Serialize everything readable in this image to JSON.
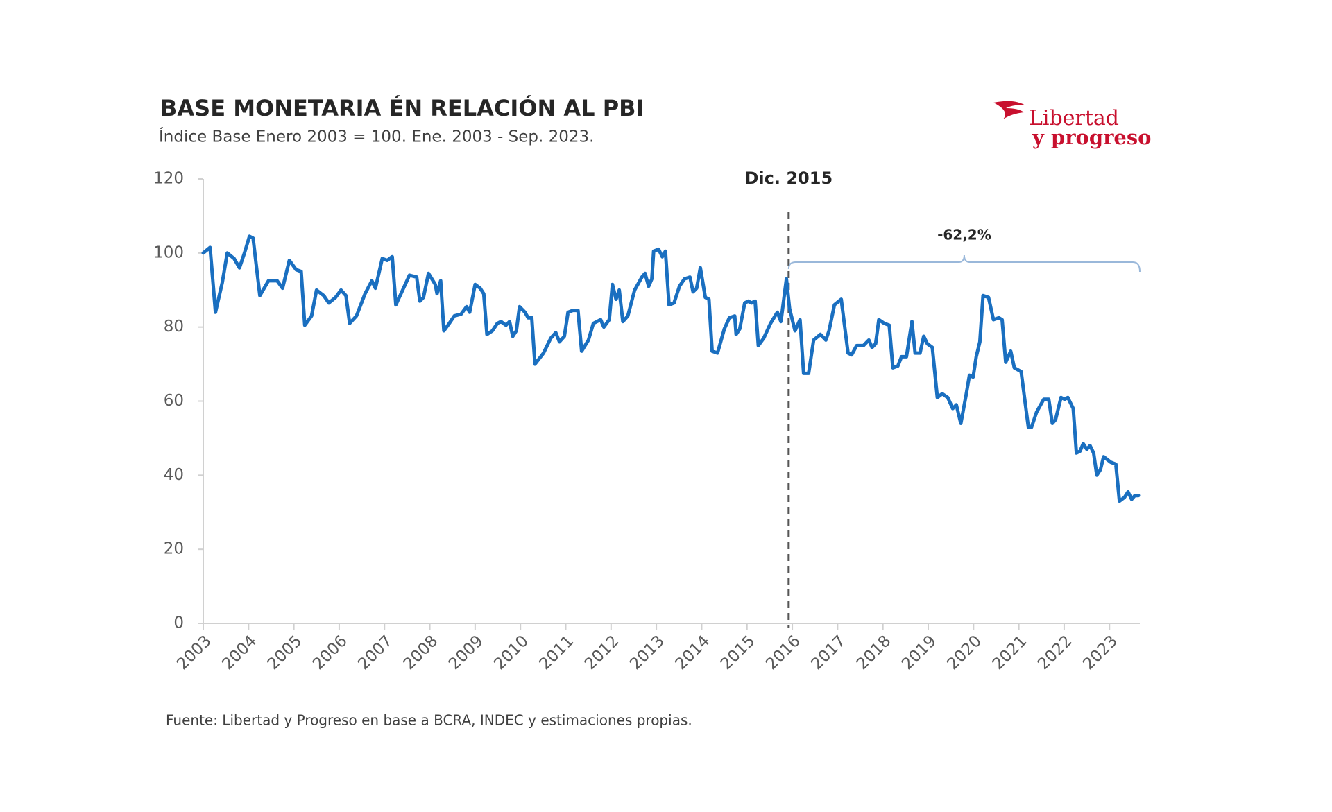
{
  "chart_data": {
    "type": "line",
    "title": "BASE MONETARIA ÉN RELACIÓN AL PBI",
    "subtitle": "Índice Base Enero 2003 = 100. Ene. 2003 - Sep. 2023.",
    "source": "Fuente: Libertad y Progreso en base a BCRA, INDEC y estimaciones propias.",
    "logo": [
      "Libertad",
      "y progreso"
    ],
    "color": "#1a6fc0",
    "xlim": [
      2003,
      2023.67
    ],
    "xticks": [
      2003,
      2004,
      2005,
      2006,
      2007,
      2008,
      2009,
      2010,
      2011,
      2012,
      2013,
      2014,
      2015,
      2016,
      2017,
      2018,
      2019,
      2020,
      2021,
      2022,
      2023
    ],
    "ylim": [
      0,
      120
    ],
    "yticks": [
      0,
      20,
      40,
      60,
      80,
      100,
      120
    ],
    "grid": false,
    "annotations": [
      {
        "text": "Dic. 2015",
        "x": 2015.92
      },
      {
        "text": "-62,2%"
      }
    ],
    "x": [
      2003.0,
      2003.15,
      2003.27,
      2003.42,
      2003.53,
      2003.68,
      2003.8,
      2003.91,
      2004.02,
      2004.1,
      2004.25,
      2004.44,
      2004.63,
      2004.75,
      2004.9,
      2005.05,
      2005.16,
      2005.24,
      2005.39,
      2005.5,
      2005.66,
      2005.77,
      2005.92,
      2006.04,
      2006.15,
      2006.23,
      2006.38,
      2006.57,
      2006.72,
      2006.8,
      2006.95,
      2007.06,
      2007.17,
      2007.25,
      2007.4,
      2007.55,
      2007.71,
      2007.78,
      2007.86,
      2007.97,
      2008.12,
      2008.16,
      2008.24,
      2008.31,
      2008.43,
      2008.54,
      2008.69,
      2008.81,
      2008.88,
      2009.0,
      2009.11,
      2009.19,
      2009.26,
      2009.38,
      2009.49,
      2009.57,
      2009.68,
      2009.76,
      2009.83,
      2009.91,
      2009.98,
      2010.1,
      2010.17,
      2010.25,
      2010.32,
      2010.51,
      2010.67,
      2010.78,
      2010.86,
      2010.97,
      2011.05,
      2011.16,
      2011.27,
      2011.35,
      2011.5,
      2011.61,
      2011.77,
      2011.84,
      2011.96,
      2012.03,
      2012.11,
      2012.18,
      2012.26,
      2012.37,
      2012.52,
      2012.68,
      2012.75,
      2012.83,
      2012.9,
      2012.94,
      2013.05,
      2013.13,
      2013.2,
      2013.28,
      2013.39,
      2013.51,
      2013.62,
      2013.74,
      2013.81,
      2013.89,
      2013.97,
      2014.08,
      2014.16,
      2014.23,
      2014.35,
      2014.5,
      2014.61,
      2014.73,
      2014.76,
      2014.84,
      2014.95,
      2015.03,
      2015.1,
      2015.18,
      2015.25,
      2015.37,
      2015.52,
      2015.67,
      2015.75,
      2015.87,
      2015.94,
      2016.06,
      2016.17,
      2016.25,
      2016.36,
      2016.47,
      2016.62,
      2016.74,
      2016.81,
      2016.93,
      2017.08,
      2017.23,
      2017.31,
      2017.42,
      2017.57,
      2017.69,
      2017.76,
      2017.84,
      2017.91,
      2018.03,
      2018.14,
      2018.22,
      2018.33,
      2018.41,
      2018.52,
      2018.64,
      2018.71,
      2018.82,
      2018.9,
      2018.98,
      2019.09,
      2019.2,
      2019.31,
      2019.43,
      2019.54,
      2019.62,
      2019.72,
      2019.84,
      2019.91,
      2019.99,
      2020.06,
      2020.14,
      2020.21,
      2020.33,
      2020.44,
      2020.56,
      2020.63,
      2020.71,
      2020.82,
      2020.9,
      2021.05,
      2021.21,
      2021.28,
      2021.39,
      2021.55,
      2021.66,
      2021.74,
      2021.81,
      2021.93,
      2022.01,
      2022.08,
      2022.2,
      2022.27,
      2022.35,
      2022.42,
      2022.5,
      2022.57,
      2022.65,
      2022.72,
      2022.8,
      2022.87,
      2023.03,
      2023.14,
      2023.22,
      2023.33,
      2023.41,
      2023.49,
      2023.56,
      2023.64
    ],
    "values": [
      100,
      101.5,
      84,
      92,
      100,
      98.5,
      96,
      100,
      104.5,
      104,
      88.5,
      92.5,
      92.5,
      90.5,
      98,
      95.5,
      95,
      80.5,
      83,
      90,
      88.5,
      86.5,
      88,
      90,
      88.5,
      81,
      83,
      89,
      92.5,
      90.5,
      98.5,
      98,
      99,
      86,
      90,
      94,
      93.5,
      87,
      88,
      94.5,
      91.5,
      89,
      92.5,
      79,
      81,
      83,
      83.5,
      85.5,
      84,
      91.5,
      90.5,
      89,
      78,
      79,
      81,
      81.5,
      80.5,
      81.5,
      77.5,
      79,
      85.5,
      84,
      82.5,
      82.5,
      70,
      73,
      77,
      78.5,
      76,
      77.5,
      84,
      84.5,
      84.5,
      73.5,
      76.5,
      81,
      82,
      80,
      82,
      91.5,
      87.5,
      90,
      81.5,
      83,
      90,
      93.5,
      94.5,
      91,
      93,
      100.5,
      101,
      99,
      100.5,
      86,
      86.5,
      91,
      93,
      93.5,
      89.5,
      90.5,
      96,
      88,
      87.5,
      73.5,
      73,
      79.5,
      82.5,
      83,
      78,
      79.5,
      86.5,
      87,
      86.5,
      87,
      75,
      77,
      81,
      84,
      81.5,
      93,
      85,
      79,
      82,
      67.5,
      67.5,
      76.5,
      78,
      76.5,
      79,
      86,
      87.5,
      73,
      72.5,
      75,
      75,
      76.5,
      74.5,
      75.5,
      82,
      81,
      80.5,
      69,
      69.5,
      72,
      72,
      81.5,
      73,
      73,
      77.5,
      75.5,
      74.5,
      61,
      62,
      61,
      58,
      59,
      54,
      62,
      67,
      66.5,
      72,
      76,
      88.5,
      88,
      82,
      82.5,
      82,
      70.5,
      73.5,
      69,
      68,
      53,
      53,
      57,
      60.5,
      60.5,
      54,
      55,
      61,
      60.5,
      61,
      58,
      46,
      46.5,
      48.5,
      47,
      48,
      46,
      40,
      41.5,
      45,
      43.5,
      43,
      33,
      34,
      35.5,
      33.5,
      34.5,
      34.5
    ]
  }
}
